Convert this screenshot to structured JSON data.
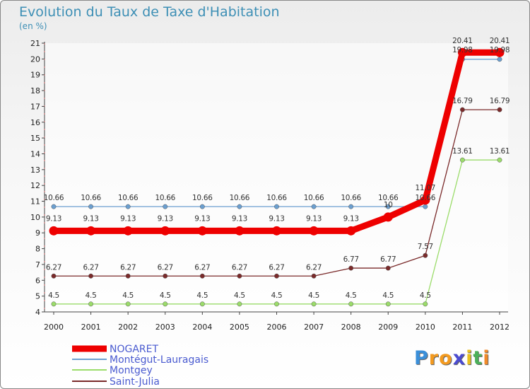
{
  "chart_data": {
    "type": "line",
    "title": "Evolution du Taux de Taxe d'Habitation",
    "unit_label": "(en %)",
    "xlabel": "",
    "ylabel": "",
    "x": [
      "2000",
      "2001",
      "2002",
      "2003",
      "2004",
      "2005",
      "2006",
      "2007",
      "2008",
      "2009",
      "2010",
      "2011",
      "2012"
    ],
    "ylim": [
      4,
      21
    ],
    "yticks": [
      4,
      5,
      6,
      7,
      8,
      9,
      10,
      11,
      12,
      13,
      14,
      15,
      16,
      17,
      18,
      19,
      20,
      21
    ],
    "series": [
      {
        "name": "NOGARET",
        "color": "#ee0000",
        "values": [
          9.13,
          9.13,
          9.13,
          9.13,
          9.13,
          9.13,
          9.13,
          9.13,
          9.13,
          10,
          11.07,
          20.41,
          20.41
        ],
        "labels": [
          "9.13",
          "9.13",
          "9.13",
          "9.13",
          "9.13",
          "9.13",
          "9.13",
          "9.13",
          "9.13",
          "10",
          "11.07",
          "20.41",
          "20.41"
        ]
      },
      {
        "name": "Montégut-Lauragais",
        "color": "#6b9fd0",
        "values": [
          10.66,
          10.66,
          10.66,
          10.66,
          10.66,
          10.66,
          10.66,
          10.66,
          10.66,
          10.66,
          10.66,
          19.98,
          19.98
        ],
        "labels": [
          "10.66",
          "10.66",
          "10.66",
          "10.66",
          "10.66",
          "10.66",
          "10.66",
          "10.66",
          "10.66",
          "10.66",
          "10.66",
          "19.98",
          "19.98"
        ]
      },
      {
        "name": "Montgey",
        "color": "#9bdc6a",
        "values": [
          4.5,
          4.5,
          4.5,
          4.5,
          4.5,
          4.5,
          4.5,
          4.5,
          4.5,
          4.5,
          4.5,
          13.61,
          13.61
        ],
        "labels": [
          "4.5",
          "4.5",
          "4.5",
          "4.5",
          "4.5",
          "4.5",
          "4.5",
          "4.5",
          "4.5",
          "4.5",
          "4.5",
          "13.61",
          "13.61"
        ]
      },
      {
        "name": "Saint-Julia",
        "color": "#7a2a2a",
        "values": [
          6.27,
          6.27,
          6.27,
          6.27,
          6.27,
          6.27,
          6.27,
          6.27,
          6.77,
          6.77,
          7.57,
          16.79,
          16.79
        ],
        "labels": [
          "6.27",
          "6.27",
          "6.27",
          "6.27",
          "6.27",
          "6.27",
          "6.27",
          "6.27",
          "6.77",
          "6.77",
          "7.57",
          "16.79",
          "16.79"
        ]
      }
    ],
    "legend_position": "bottom-left"
  },
  "logo": {
    "letters": [
      "P",
      "r",
      "o",
      "x",
      "i",
      "t",
      "i"
    ],
    "colors": [
      "#3a8fd9",
      "#f39a1f",
      "#f39a1f",
      "#4b4bd0",
      "#e8c020",
      "#4bb05a",
      "#f08a2a"
    ]
  }
}
